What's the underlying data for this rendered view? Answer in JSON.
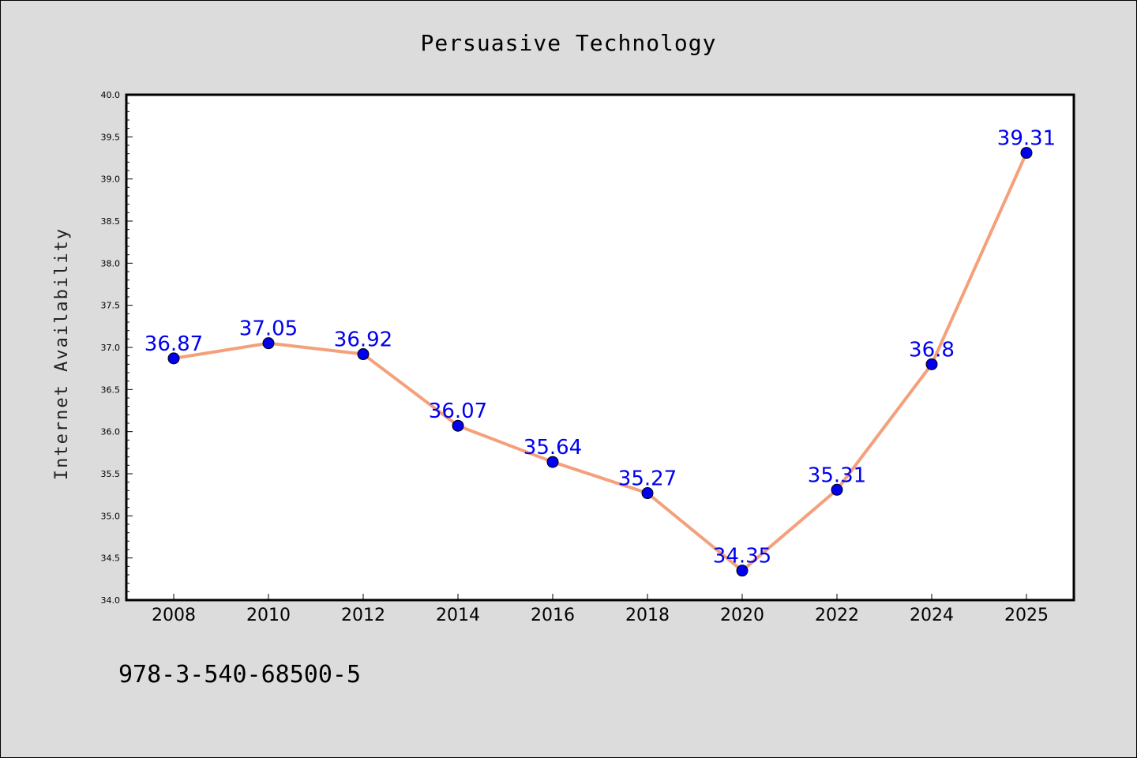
{
  "chart_data": {
    "type": "line",
    "title": "Persuasive Technology",
    "xlabel": "",
    "ylabel": "Internet Availability",
    "categories": [
      "2008",
      "2010",
      "2012",
      "2014",
      "2016",
      "2018",
      "2020",
      "2022",
      "2024",
      "2025"
    ],
    "series": [
      {
        "values": [
          36.87,
          37.05,
          36.92,
          36.07,
          35.64,
          35.27,
          34.35,
          35.31,
          36.8,
          39.31
        ],
        "data_labels": [
          "36.87",
          "37.05",
          "36.92",
          "36.07",
          "35.64",
          "35.27",
          "34.35",
          "35.31",
          "36.8",
          "39.31"
        ],
        "line_color": "#f4a07a",
        "marker_color": "#0000ee"
      }
    ],
    "ylim": [
      34.0,
      40.0
    ],
    "yticks": [
      "34.0",
      "34.5",
      "35.0",
      "35.5",
      "36.0",
      "36.5",
      "37.0",
      "37.5",
      "38.0",
      "38.5",
      "39.0",
      "39.5",
      "40.0"
    ],
    "grid": false,
    "legend": "none"
  },
  "footer": {
    "isbn": "978-3-540-68500-5"
  },
  "colors": {
    "background": "#dcdcdc",
    "plot_background": "#ffffff",
    "line": "#f4a07a",
    "marker": "#0000ee",
    "data_label": "#0000ee"
  }
}
